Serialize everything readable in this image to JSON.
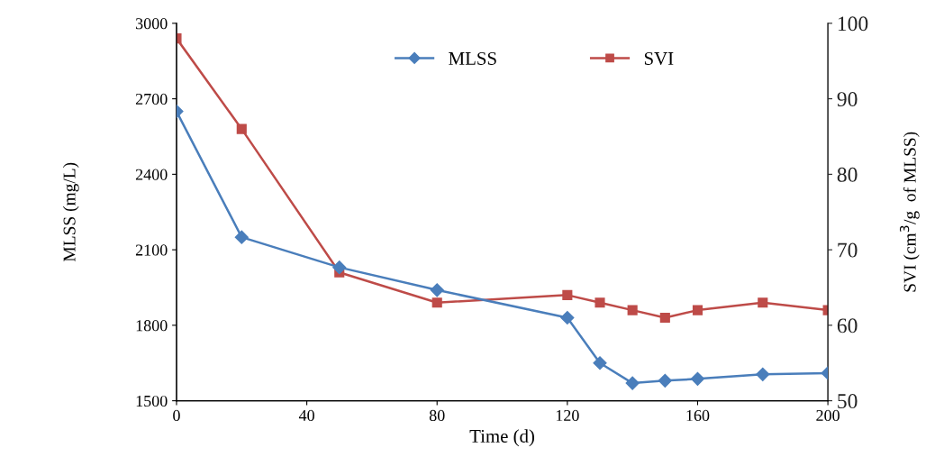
{
  "chart_data": {
    "type": "line",
    "xlabel": "Time (d)",
    "ylabel": "MLSS (mg/L)",
    "y2label": "SVI (cm$^{3}$/g  of MLSS)",
    "x": [
      0,
      20,
      50,
      80,
      120,
      130,
      140,
      150,
      160,
      180,
      200
    ],
    "series": [
      {
        "name": "MLSS",
        "color": "#4a7ebb",
        "marker": "diamond",
        "values": [
          2650,
          2150,
          2030,
          1940,
          1830,
          1650,
          1570,
          1580,
          1587,
          1605,
          1610
        ]
      },
      {
        "name": "SVI",
        "color": "#be4b48",
        "marker": "square",
        "axis": "y2",
        "values": [
          98,
          86,
          67,
          63,
          64,
          63,
          62,
          61,
          62,
          63,
          62
        ]
      }
    ],
    "xlim": [
      0,
      200
    ],
    "xticks": [
      0,
      40,
      80,
      120,
      160,
      200
    ],
    "ylim": [
      1500,
      3000
    ],
    "yticks": [
      1500,
      1800,
      2100,
      2400,
      2700,
      3000
    ],
    "y2lim": [
      50,
      100
    ],
    "y2ticks": [
      50,
      60,
      70,
      80,
      90,
      100
    ],
    "legend": "top",
    "grid": false,
    "line_style": "solid"
  }
}
